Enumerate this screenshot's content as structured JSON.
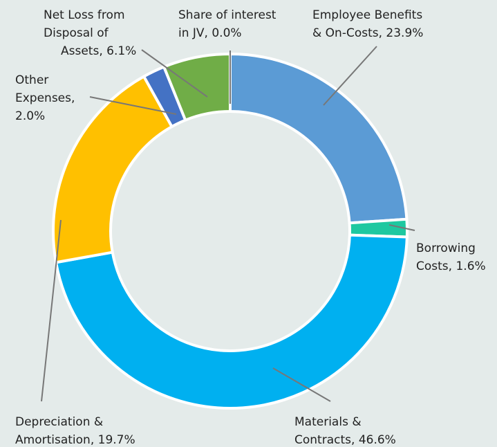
{
  "chart_data": {
    "type": "pie",
    "donut": true,
    "categories": [
      "Employee Benefits & On-Costs",
      "Borrowing Costs",
      "Materials & Contracts",
      "Depreciation & Amortisation",
      "Other Expenses",
      "Net Loss from Disposal of Assets",
      "Share of interest in JV"
    ],
    "values": [
      23.9,
      1.6,
      46.6,
      19.7,
      2.0,
      6.1,
      0.0
    ],
    "value_labels": [
      "23.9%",
      "1.6%",
      "46.6%",
      "19.7%",
      "2.0%",
      "6.1%",
      "0.0%"
    ],
    "colors": [
      "#5b9bd5",
      "#1ec8a0",
      "#00b0f0",
      "#ffc000",
      "#4472c4",
      "#70ad47",
      "#a5a5a5"
    ]
  }
}
